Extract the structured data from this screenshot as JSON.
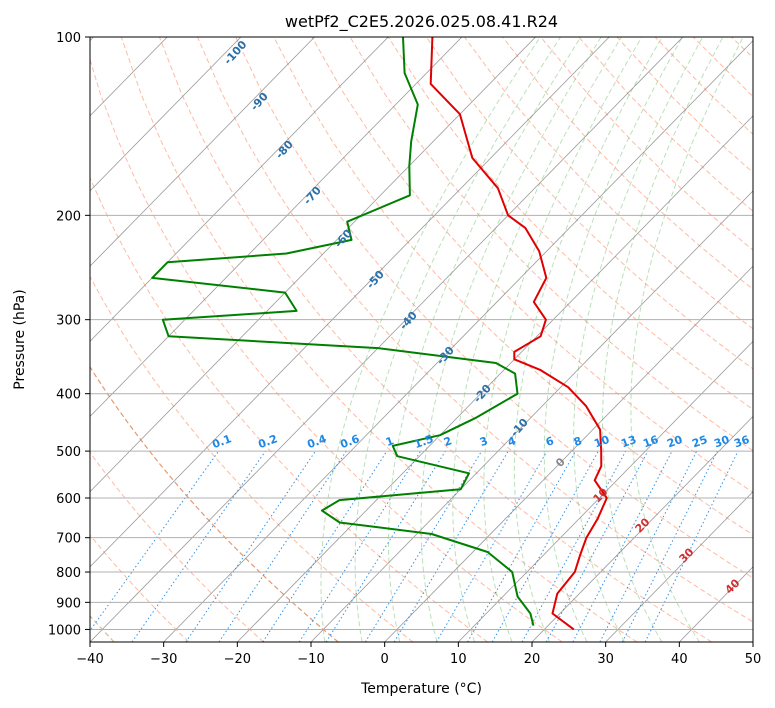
{
  "chart_data": {
    "type": "line",
    "title": "wetPf2_C2E5.2026.025.08.41.R24",
    "xlabel": "Temperature (°C)",
    "ylabel": "Pressure (hPa)",
    "xlim": [
      -40,
      50
    ],
    "ylim": [
      1050,
      100
    ],
    "y_scale": "log",
    "skew": true,
    "grid": true,
    "x_ticks": [
      -40,
      -30,
      -20,
      -10,
      0,
      10,
      20,
      30,
      40,
      50
    ],
    "y_ticks": [
      100,
      200,
      300,
      400,
      500,
      600,
      700,
      800,
      900,
      1000
    ],
    "colors": {
      "temperature": "#e00000",
      "dewpoint": "#008000",
      "isotherm": "#808080",
      "dry_adiabat": "#ff6633",
      "moist_adiabat": "#66bb66",
      "mixing_ratio": "#1e88e5",
      "theta_e": "#c8a070"
    },
    "series": [
      {
        "color": "#e00000",
        "points": [
          [
            24.0,
            1000
          ],
          [
            19.0,
            940
          ],
          [
            17.0,
            870
          ],
          [
            16.5,
            800
          ],
          [
            15.0,
            750
          ],
          [
            13.5,
            700
          ],
          [
            12.5,
            650
          ],
          [
            11.0,
            600
          ],
          [
            7.0,
            560
          ],
          [
            6.0,
            530
          ],
          [
            4.0,
            500
          ],
          [
            1.0,
            460
          ],
          [
            -4.0,
            420
          ],
          [
            -9.0,
            390
          ],
          [
            -15.0,
            365
          ],
          [
            -20.0,
            350
          ],
          [
            -21.0,
            340
          ],
          [
            -19.5,
            320
          ],
          [
            -21.0,
            300
          ],
          [
            -25.0,
            280
          ],
          [
            -26.5,
            255
          ],
          [
            -31.0,
            230
          ],
          [
            -36.0,
            210
          ],
          [
            -40.0,
            200
          ],
          [
            -45.0,
            180
          ],
          [
            -52.5,
            160
          ],
          [
            -60.0,
            135
          ],
          [
            -68.0,
            120
          ],
          [
            -74.0,
            100
          ]
        ]
      },
      {
        "color": "#008000",
        "points": [
          [
            18.0,
            985
          ],
          [
            16.0,
            940
          ],
          [
            12.0,
            880
          ],
          [
            8.0,
            800
          ],
          [
            2.0,
            740
          ],
          [
            -8.0,
            690
          ],
          [
            -22.0,
            660
          ],
          [
            -26.0,
            630
          ],
          [
            -25.0,
            605
          ],
          [
            -10.0,
            580
          ],
          [
            -11.0,
            545
          ],
          [
            -23.0,
            510
          ],
          [
            -25.0,
            490
          ],
          [
            -20.0,
            470
          ],
          [
            -17.5,
            440
          ],
          [
            -15.0,
            400
          ],
          [
            -18.0,
            370
          ],
          [
            -22.0,
            355
          ],
          [
            -40.0,
            335
          ],
          [
            -70.0,
            320
          ],
          [
            -73.0,
            300
          ],
          [
            -56.0,
            290
          ],
          [
            -60.0,
            270
          ],
          [
            -80.0,
            255
          ],
          [
            -80.0,
            240
          ],
          [
            -65.0,
            232
          ],
          [
            -58.0,
            220
          ],
          [
            -61.0,
            205
          ],
          [
            -56.0,
            185
          ],
          [
            -60.0,
            165
          ],
          [
            -63.0,
            150
          ],
          [
            -67.0,
            130
          ],
          [
            -73.0,
            115
          ],
          [
            -78.0,
            100
          ]
        ]
      }
    ],
    "annotations": {
      "dry_adiabat_labels": [
        "-100",
        "-90",
        "-80",
        "-70",
        "-60",
        "-50",
        "-40",
        "-30",
        "-20",
        "-10"
      ],
      "mixing_ratio_labels": [
        "0.1",
        "0.2",
        "0.4",
        "0.6",
        "1",
        "1.5",
        "2",
        "3",
        "4",
        "6",
        "8",
        "10",
        "13",
        "16",
        "20",
        "25",
        "30",
        "36"
      ],
      "theta_e_labels": [
        "0",
        "10",
        "20",
        "30",
        "40"
      ]
    }
  }
}
